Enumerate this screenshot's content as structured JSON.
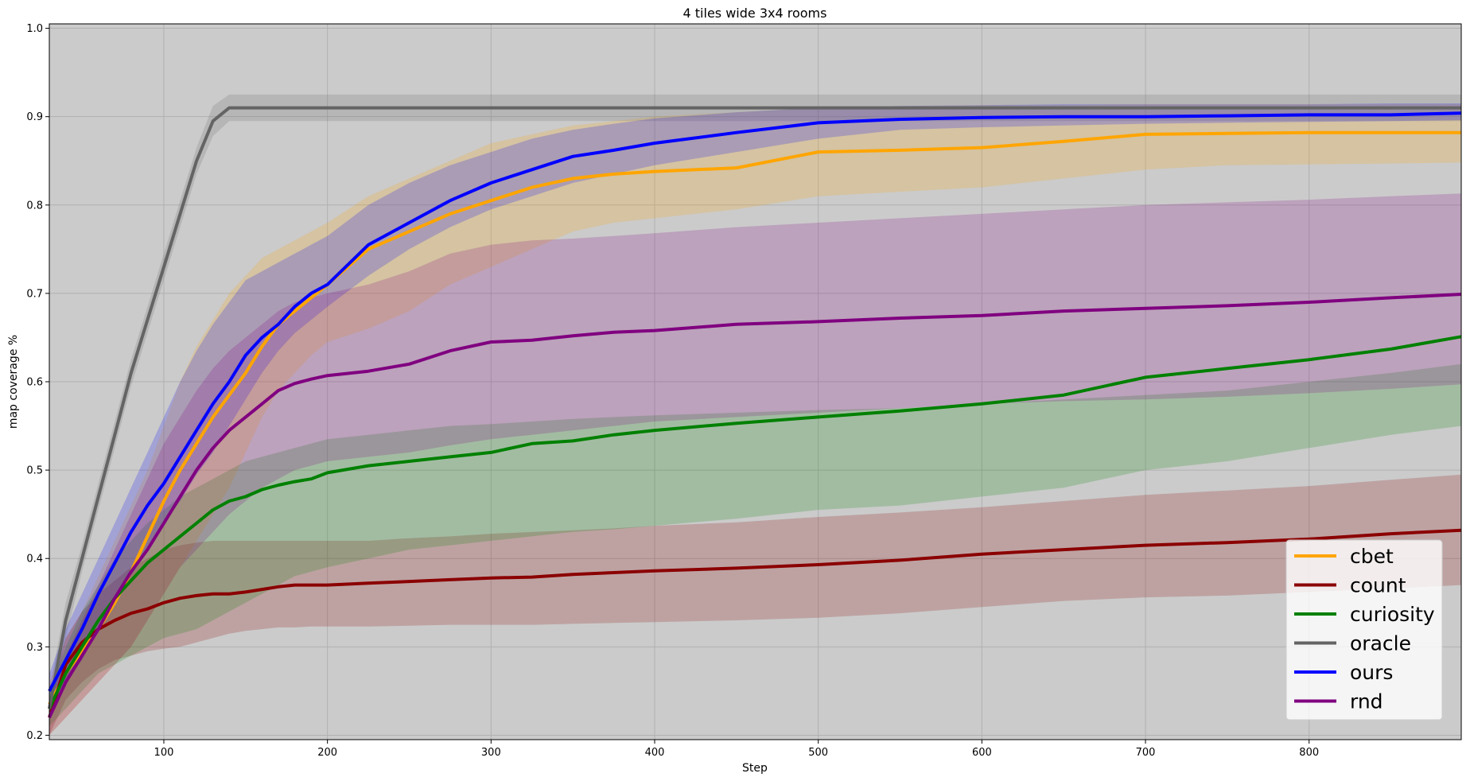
{
  "chart_data": {
    "type": "line",
    "title": "4 tiles wide 3x4 rooms",
    "xlabel": "Step",
    "ylabel": "map coverage %",
    "xlim": [
      30,
      893
    ],
    "ylim": [
      0.195,
      1.005
    ],
    "xticks": [
      100,
      200,
      300,
      400,
      500,
      600,
      700,
      800
    ],
    "yticks": [
      0.2,
      0.3,
      0.4,
      0.5,
      0.6,
      0.7,
      0.8,
      0.9,
      1.0
    ],
    "grid": true,
    "legend_position": "lower-right",
    "plot_background": "#cbcbcb",
    "x": [
      30,
      40,
      50,
      60,
      70,
      80,
      90,
      100,
      110,
      120,
      130,
      140,
      150,
      160,
      170,
      180,
      190,
      200,
      225,
      250,
      275,
      300,
      325,
      350,
      375,
      400,
      450,
      500,
      550,
      600,
      650,
      700,
      750,
      800,
      850,
      893
    ],
    "series": [
      {
        "name": "cbet",
        "color": "#ffa500",
        "mean": [
          0.235,
          0.27,
          0.295,
          0.32,
          0.35,
          0.385,
          0.425,
          0.465,
          0.5,
          0.53,
          0.56,
          0.585,
          0.61,
          0.64,
          0.665,
          0.68,
          0.695,
          0.71,
          0.75,
          0.77,
          0.79,
          0.805,
          0.82,
          0.83,
          0.835,
          0.838,
          0.842,
          0.86,
          0.862,
          0.865,
          0.872,
          0.88,
          0.881,
          0.882,
          0.882,
          0.882
        ],
        "lower": [
          0.2,
          0.22,
          0.24,
          0.26,
          0.28,
          0.3,
          0.33,
          0.36,
          0.39,
          0.42,
          0.45,
          0.48,
          0.52,
          0.56,
          0.59,
          0.61,
          0.63,
          0.645,
          0.66,
          0.68,
          0.71,
          0.73,
          0.75,
          0.77,
          0.78,
          0.785,
          0.795,
          0.81,
          0.815,
          0.82,
          0.83,
          0.84,
          0.845,
          0.846,
          0.847,
          0.848
        ],
        "upper": [
          0.26,
          0.31,
          0.34,
          0.38,
          0.42,
          0.46,
          0.5,
          0.55,
          0.6,
          0.64,
          0.67,
          0.7,
          0.72,
          0.74,
          0.75,
          0.76,
          0.77,
          0.78,
          0.81,
          0.83,
          0.85,
          0.87,
          0.88,
          0.89,
          0.895,
          0.9,
          0.905,
          0.91,
          0.912,
          0.913,
          0.913,
          0.914,
          0.914,
          0.914,
          0.914,
          0.914
        ]
      },
      {
        "name": "count",
        "color": "#8b0000",
        "mean": [
          0.22,
          0.28,
          0.305,
          0.32,
          0.33,
          0.338,
          0.343,
          0.35,
          0.355,
          0.358,
          0.36,
          0.36,
          0.362,
          0.365,
          0.368,
          0.37,
          0.37,
          0.37,
          0.372,
          0.374,
          0.376,
          0.378,
          0.379,
          0.382,
          0.384,
          0.386,
          0.389,
          0.393,
          0.398,
          0.405,
          0.41,
          0.415,
          0.418,
          0.422,
          0.428,
          0.432
        ],
        "lower": [
          0.2,
          0.24,
          0.26,
          0.275,
          0.285,
          0.29,
          0.295,
          0.298,
          0.3,
          0.305,
          0.31,
          0.315,
          0.318,
          0.32,
          0.322,
          0.322,
          0.323,
          0.323,
          0.323,
          0.324,
          0.325,
          0.325,
          0.325,
          0.326,
          0.327,
          0.328,
          0.33,
          0.333,
          0.338,
          0.345,
          0.352,
          0.356,
          0.358,
          0.362,
          0.366,
          0.37
        ],
        "upper": [
          0.245,
          0.31,
          0.34,
          0.36,
          0.375,
          0.39,
          0.4,
          0.41,
          0.415,
          0.418,
          0.42,
          0.42,
          0.42,
          0.42,
          0.42,
          0.42,
          0.42,
          0.42,
          0.42,
          0.423,
          0.425,
          0.428,
          0.43,
          0.432,
          0.434,
          0.437,
          0.441,
          0.447,
          0.452,
          0.458,
          0.465,
          0.472,
          0.477,
          0.482,
          0.489,
          0.495
        ]
      },
      {
        "name": "curiosity",
        "color": "#008000",
        "mean": [
          0.23,
          0.27,
          0.3,
          0.33,
          0.355,
          0.375,
          0.395,
          0.41,
          0.425,
          0.44,
          0.455,
          0.465,
          0.47,
          0.478,
          0.483,
          0.487,
          0.49,
          0.497,
          0.505,
          0.51,
          0.515,
          0.52,
          0.53,
          0.533,
          0.54,
          0.545,
          0.553,
          0.56,
          0.567,
          0.575,
          0.585,
          0.605,
          0.615,
          0.625,
          0.637,
          0.651
        ],
        "lower": [
          0.21,
          0.23,
          0.25,
          0.27,
          0.28,
          0.29,
          0.3,
          0.31,
          0.315,
          0.32,
          0.33,
          0.34,
          0.35,
          0.36,
          0.37,
          0.38,
          0.385,
          0.39,
          0.4,
          0.41,
          0.415,
          0.42,
          0.425,
          0.43,
          0.433,
          0.437,
          0.445,
          0.455,
          0.46,
          0.47,
          0.48,
          0.5,
          0.51,
          0.525,
          0.54,
          0.55
        ],
        "upper": [
          0.25,
          0.3,
          0.34,
          0.37,
          0.4,
          0.42,
          0.44,
          0.455,
          0.47,
          0.48,
          0.49,
          0.5,
          0.51,
          0.515,
          0.52,
          0.525,
          0.53,
          0.535,
          0.54,
          0.545,
          0.55,
          0.552,
          0.555,
          0.558,
          0.56,
          0.562,
          0.565,
          0.568,
          0.57,
          0.575,
          0.58,
          0.585,
          0.59,
          0.6,
          0.61,
          0.62
        ]
      },
      {
        "name": "oracle",
        "color": "#646464",
        "mean": [
          0.23,
          0.33,
          0.4,
          0.47,
          0.54,
          0.61,
          0.67,
          0.73,
          0.79,
          0.85,
          0.895,
          0.91,
          0.91,
          0.91,
          0.91,
          0.91,
          0.91,
          0.91,
          0.91,
          0.91,
          0.91,
          0.91,
          0.91,
          0.91,
          0.91,
          0.91,
          0.91,
          0.91,
          0.91,
          0.91,
          0.91,
          0.91,
          0.91,
          0.91,
          0.91,
          0.91
        ],
        "lower": [
          0.21,
          0.31,
          0.385,
          0.455,
          0.525,
          0.595,
          0.655,
          0.715,
          0.775,
          0.835,
          0.878,
          0.895,
          0.895,
          0.895,
          0.895,
          0.895,
          0.895,
          0.895,
          0.895,
          0.895,
          0.895,
          0.895,
          0.895,
          0.895,
          0.895,
          0.895,
          0.895,
          0.895,
          0.895,
          0.895,
          0.895,
          0.895,
          0.895,
          0.895,
          0.895,
          0.895
        ],
        "upper": [
          0.25,
          0.35,
          0.415,
          0.485,
          0.555,
          0.625,
          0.685,
          0.745,
          0.805,
          0.865,
          0.912,
          0.925,
          0.925,
          0.925,
          0.925,
          0.925,
          0.925,
          0.925,
          0.925,
          0.925,
          0.925,
          0.925,
          0.925,
          0.925,
          0.925,
          0.925,
          0.925,
          0.925,
          0.925,
          0.925,
          0.925,
          0.925,
          0.925,
          0.925,
          0.925,
          0.925
        ]
      },
      {
        "name": "ours",
        "color": "#0000ff",
        "mean": [
          0.25,
          0.285,
          0.32,
          0.36,
          0.395,
          0.43,
          0.46,
          0.485,
          0.515,
          0.545,
          0.575,
          0.6,
          0.63,
          0.65,
          0.665,
          0.685,
          0.7,
          0.71,
          0.755,
          0.78,
          0.805,
          0.825,
          0.84,
          0.855,
          0.862,
          0.87,
          0.882,
          0.893,
          0.897,
          0.899,
          0.9,
          0.9,
          0.901,
          0.902,
          0.902,
          0.904
        ],
        "lower": [
          0.23,
          0.26,
          0.285,
          0.32,
          0.35,
          0.38,
          0.41,
          0.44,
          0.465,
          0.495,
          0.52,
          0.55,
          0.58,
          0.61,
          0.635,
          0.655,
          0.67,
          0.685,
          0.72,
          0.75,
          0.775,
          0.795,
          0.81,
          0.825,
          0.835,
          0.845,
          0.86,
          0.875,
          0.885,
          0.888,
          0.89,
          0.892,
          0.893,
          0.894,
          0.895,
          0.896
        ],
        "upper": [
          0.27,
          0.32,
          0.36,
          0.4,
          0.44,
          0.48,
          0.52,
          0.56,
          0.6,
          0.635,
          0.665,
          0.69,
          0.715,
          0.725,
          0.735,
          0.745,
          0.755,
          0.765,
          0.8,
          0.825,
          0.845,
          0.86,
          0.875,
          0.885,
          0.892,
          0.898,
          0.905,
          0.91,
          0.912,
          0.913,
          0.914,
          0.914,
          0.914,
          0.914,
          0.915,
          0.915
        ]
      },
      {
        "name": "rnd",
        "color": "#800080",
        "mean": [
          0.22,
          0.26,
          0.29,
          0.32,
          0.355,
          0.385,
          0.41,
          0.44,
          0.47,
          0.5,
          0.525,
          0.545,
          0.56,
          0.575,
          0.59,
          0.598,
          0.603,
          0.607,
          0.612,
          0.62,
          0.635,
          0.645,
          0.647,
          0.652,
          0.656,
          0.658,
          0.665,
          0.668,
          0.672,
          0.675,
          0.68,
          0.683,
          0.686,
          0.69,
          0.695,
          0.699
        ],
        "lower": [
          0.2,
          0.22,
          0.24,
          0.26,
          0.28,
          0.3,
          0.33,
          0.36,
          0.39,
          0.41,
          0.43,
          0.45,
          0.465,
          0.48,
          0.49,
          0.5,
          0.505,
          0.51,
          0.515,
          0.52,
          0.528,
          0.535,
          0.54,
          0.545,
          0.55,
          0.555,
          0.56,
          0.565,
          0.57,
          0.575,
          0.578,
          0.58,
          0.583,
          0.587,
          0.592,
          0.597
        ],
        "upper": [
          0.24,
          0.29,
          0.33,
          0.37,
          0.41,
          0.45,
          0.49,
          0.53,
          0.56,
          0.59,
          0.615,
          0.635,
          0.65,
          0.665,
          0.68,
          0.69,
          0.695,
          0.7,
          0.71,
          0.725,
          0.745,
          0.755,
          0.76,
          0.762,
          0.765,
          0.768,
          0.775,
          0.78,
          0.785,
          0.79,
          0.795,
          0.8,
          0.803,
          0.806,
          0.81,
          0.813
        ]
      }
    ]
  }
}
